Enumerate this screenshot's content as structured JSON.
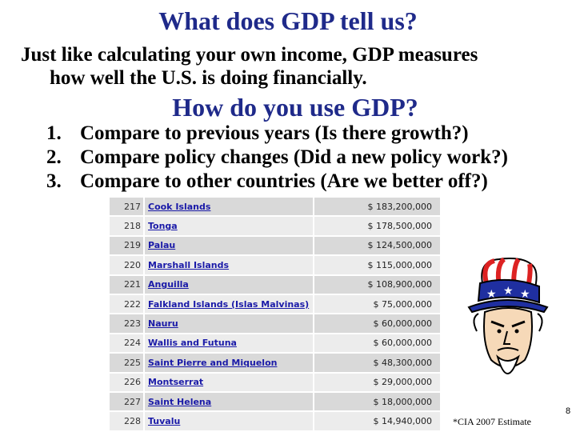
{
  "title": "What does GDP tell us?",
  "intro": {
    "line1": "Just like calculating your own income, GDP measures",
    "line2": "how well the U.S. is doing financially."
  },
  "subtitle": "How do you use GDP?",
  "uses": [
    {
      "num": "1.",
      "text": "Compare to previous years (Is there growth?)"
    },
    {
      "num": "2.",
      "text": "Compare policy changes (Did a new policy work?)"
    },
    {
      "num": "3.",
      "text": "Compare to other countries (Are we better off?)"
    }
  ],
  "gdp_table": [
    {
      "rank": "217",
      "country": "Cook Islands",
      "gdp": "$ 183,200,000"
    },
    {
      "rank": "218",
      "country": "Tonga",
      "gdp": "$ 178,500,000"
    },
    {
      "rank": "219",
      "country": "Palau",
      "gdp": "$ 124,500,000"
    },
    {
      "rank": "220",
      "country": "Marshall Islands",
      "gdp": "$ 115,000,000"
    },
    {
      "rank": "221",
      "country": "Anguilla",
      "gdp": "$ 108,900,000"
    },
    {
      "rank": "222",
      "country": "Falkland Islands (Islas Malvinas)",
      "gdp": "$ 75,000,000"
    },
    {
      "rank": "223",
      "country": "Nauru",
      "gdp": "$ 60,000,000"
    },
    {
      "rank": "224",
      "country": "Wallis and Futuna",
      "gdp": "$ 60,000,000"
    },
    {
      "rank": "225",
      "country": "Saint Pierre and Miquelon",
      "gdp": "$ 48,300,000"
    },
    {
      "rank": "226",
      "country": "Montserrat",
      "gdp": "$ 29,000,000"
    },
    {
      "rank": "227",
      "country": "Saint Helena",
      "gdp": "$ 18,000,000"
    },
    {
      "rank": "228",
      "country": "Tuvalu",
      "gdp": "$ 14,940,000"
    }
  ],
  "footnote": "*CIA 2007 Estimate",
  "page_number": "8",
  "colors": {
    "title": "#1f2a8a",
    "link": "#1a1aa8",
    "row_dark": "#d9d9d9",
    "row_light": "#ececec"
  },
  "images": {
    "illustration": "uncle-sam-cartoon-icon"
  }
}
